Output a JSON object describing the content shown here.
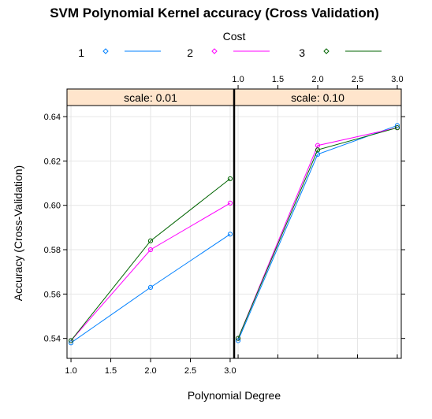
{
  "chart_data": {
    "type": "line",
    "title": "SVM Polynomial Kernel accuracy (Cross Validation)",
    "xlabel": "Polynomial Degree",
    "ylabel": "Accuracy (Cross-Validation)",
    "legend_title": "Cost",
    "legend_position": "top",
    "grid": true,
    "xlim": [
      0.95,
      3.05
    ],
    "ylim": [
      0.531,
      0.645
    ],
    "x_ticks": [
      "1.0",
      "1.5",
      "2.0",
      "2.5",
      "3.0"
    ],
    "y_ticks": [
      "0.54",
      "0.56",
      "0.58",
      "0.60",
      "0.62",
      "0.64"
    ],
    "x": [
      1,
      2,
      3
    ],
    "panels": [
      {
        "strip": "scale: 0.01",
        "series": [
          {
            "name": "1",
            "color": "#0080ff",
            "values": [
              0.538,
              0.563,
              0.587
            ]
          },
          {
            "name": "2",
            "color": "#ff00ff",
            "values": [
              0.539,
              0.58,
              0.601
            ]
          },
          {
            "name": "3",
            "color": "#006400",
            "values": [
              0.539,
              0.584,
              0.612
            ]
          }
        ]
      },
      {
        "strip": "scale: 0.10",
        "series": [
          {
            "name": "1",
            "color": "#0080ff",
            "values": [
              0.539,
              0.623,
              0.636
            ]
          },
          {
            "name": "2",
            "color": "#ff00ff",
            "values": [
              0.54,
              0.627,
              0.635
            ]
          },
          {
            "name": "3",
            "color": "#006400",
            "values": [
              0.54,
              0.625,
              0.635
            ]
          }
        ]
      }
    ]
  },
  "colors": {
    "strip_bg": "#ffe5cc",
    "grid": "#e6e6e6",
    "panel_border": "#000000"
  }
}
